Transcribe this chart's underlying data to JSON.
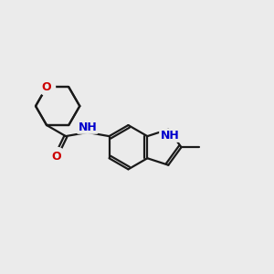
{
  "bg_color": "#ebebeb",
  "bond_color": "#1a1a1a",
  "o_color": "#cc0000",
  "n_color": "#0000cc",
  "line_width": 1.6,
  "figsize": [
    3.0,
    3.0
  ],
  "dpi": 100,
  "xlim": [
    0,
    10
  ],
  "ylim": [
    0,
    10
  ]
}
